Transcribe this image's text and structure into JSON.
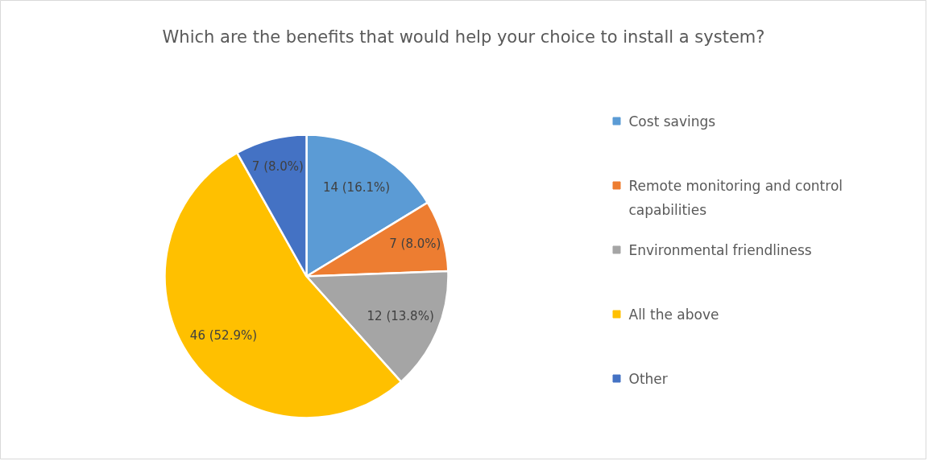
{
  "chart_data": {
    "type": "pie",
    "title": "Which are the benefits that would help your choice to install a system?",
    "categories": [
      "Cost savings",
      "Remote monitoring and control capabilities",
      "Environmental friendliness",
      "All the above",
      "Other"
    ],
    "values": [
      14,
      7,
      12,
      46,
      7
    ],
    "value_labels": [
      "14 (16.1%)",
      "7 (8.0%)",
      "12 (13.8%)",
      "46 (52.9%)",
      "7 (8.0%)"
    ],
    "colors": [
      "#5b9bd5",
      "#ed7d31",
      "#a5a5a5",
      "#ffc000",
      "#4472c4"
    ],
    "legend": "right"
  }
}
